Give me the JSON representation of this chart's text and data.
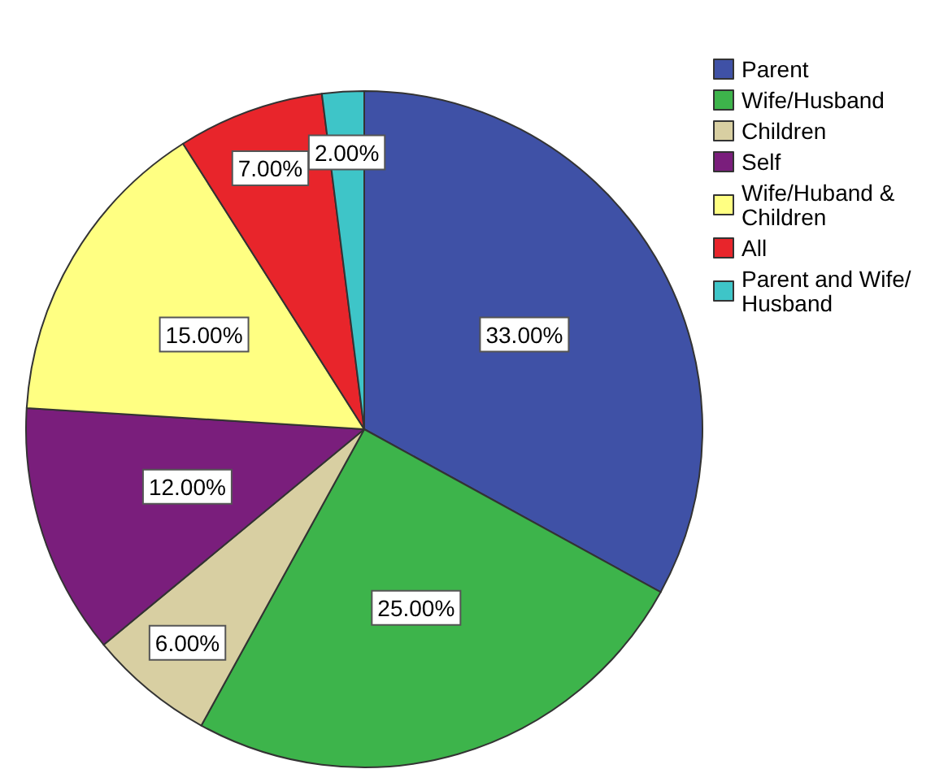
{
  "chart_data": {
    "type": "pie",
    "categories": [
      "Parent",
      "Wife/Husband",
      "Children",
      "Self",
      "Wife/Huband & Children",
      "All",
      "Parent and Wife/Husband"
    ],
    "values": [
      33,
      25,
      6,
      12,
      15,
      7,
      2
    ],
    "value_labels": [
      "33.00%",
      "25.00%",
      "6.00%",
      "12.00%",
      "15.00%",
      "7.00%",
      "2.00%"
    ],
    "colors": [
      "#3f51a6",
      "#3db44b",
      "#d8cfa2",
      "#7a1e7c",
      "#ffff82",
      "#e8252b",
      "#3ec5c8"
    ],
    "legend": "top right"
  }
}
